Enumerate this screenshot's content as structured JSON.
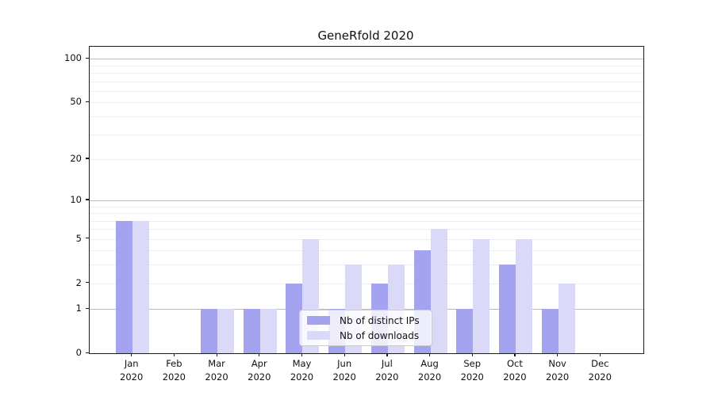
{
  "title": "GeneRfold 2020",
  "colors": {
    "bar_distinct_ips": "#a3a3ef",
    "bar_downloads": "#dadaf8",
    "grid_major": "#bbbbbb",
    "grid_minor": "#eeeeee",
    "axis": "#1a1a1a"
  },
  "legend": {
    "items": [
      {
        "label": "Nb of distinct IPs"
      },
      {
        "label": "Nb of downloads"
      }
    ]
  },
  "chart_data": {
    "type": "bar",
    "title": "GeneRfold 2020",
    "categories": [
      "Jan 2020",
      "Feb 2020",
      "Mar 2020",
      "Apr 2020",
      "May 2020",
      "Jun 2020",
      "Jul 2020",
      "Aug 2020",
      "Sep 2020",
      "Oct 2020",
      "Nov 2020",
      "Dec 2020"
    ],
    "series": [
      {
        "name": "Nb of distinct IPs",
        "key": "distinct-ips",
        "color": "#a3a3ef",
        "values": [
          7,
          0,
          1,
          1,
          2,
          1,
          2,
          4,
          1,
          3,
          1,
          0
        ]
      },
      {
        "name": "Nb of downloads",
        "key": "downloads",
        "color": "#dadaf8",
        "values": [
          7,
          0,
          1,
          1,
          5,
          3,
          3,
          6,
          5,
          5,
          2,
          0
        ]
      }
    ],
    "xlabel": "",
    "ylabel": "",
    "yscale": "log1p",
    "ylim": [
      0,
      121
    ],
    "yticks": [
      0,
      1,
      2,
      5,
      10,
      20,
      50,
      100
    ],
    "minor_gridlines": [
      2,
      3,
      4,
      5,
      6,
      7,
      8,
      9,
      20,
      30,
      40,
      50,
      60,
      70,
      80,
      90
    ],
    "major_gridlines": [
      1,
      10,
      100
    ],
    "grid": "horizontal",
    "legend_position": "lower-center-inside"
  }
}
